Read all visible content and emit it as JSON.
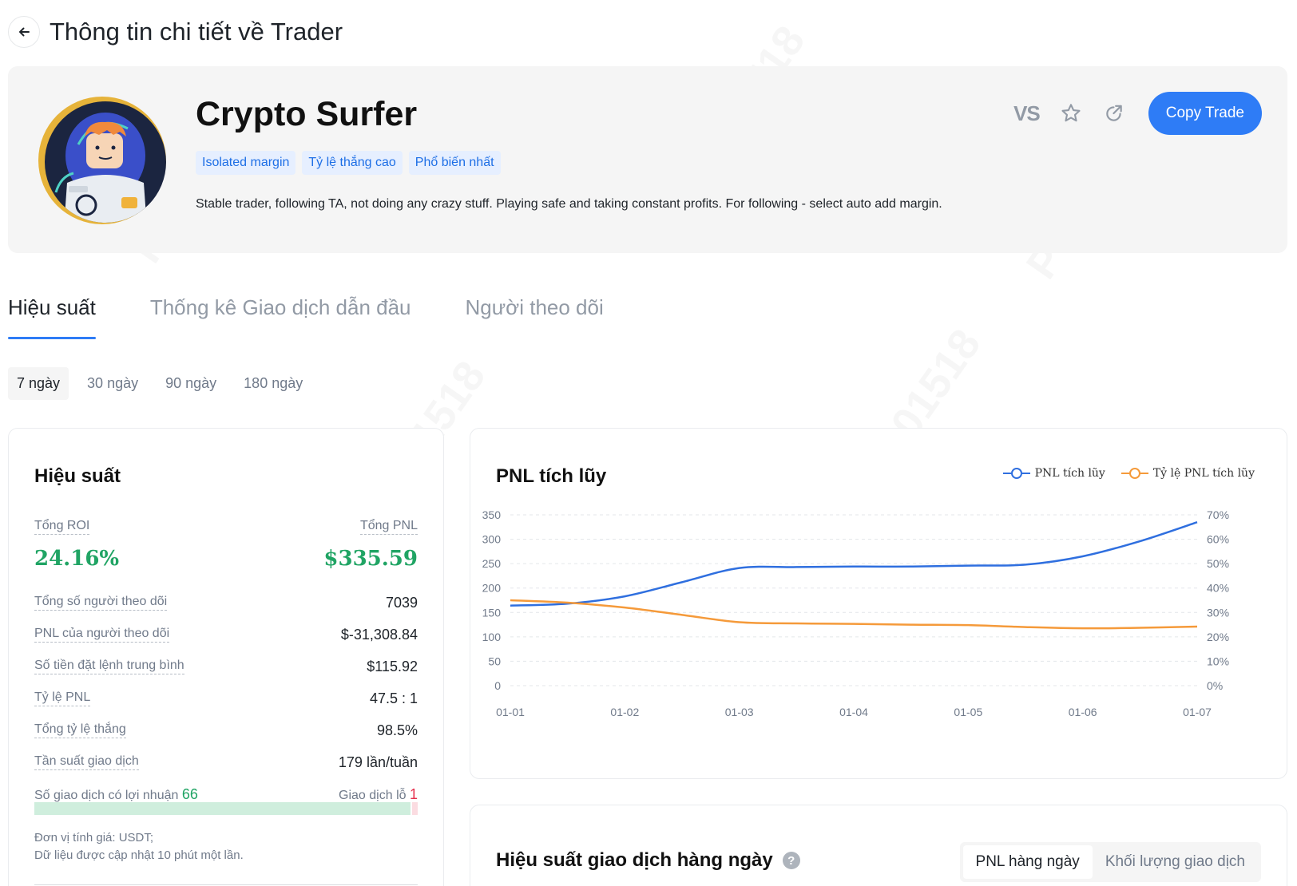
{
  "header": {
    "title": "Thông tin chi tiết về Trader",
    "back_icon": "arrow-left-icon"
  },
  "profile": {
    "name": "Crypto Surfer",
    "tags": [
      "Isolated margin",
      "Tỷ lệ thắng cao",
      "Phổ biến nhất"
    ],
    "description": "Stable trader, following TA, not doing any crazy stuff. Playing safe and taking constant profits. For following - select auto add margin.",
    "vs_label": "VS",
    "copy_label": "Copy Trade",
    "accent": "#2e7cf6"
  },
  "tabs": [
    "Hiệu suất",
    "Thống kê Giao dịch dẫn đầu",
    "Người theo dõi"
  ],
  "active_tab": 0,
  "periods": [
    "7 ngày",
    "30 ngày",
    "90 ngày",
    "180 ngày"
  ],
  "active_period": 0,
  "stats": {
    "title": "Hiệu suất",
    "roi_label": "Tổng ROI",
    "roi_value": "24.16%",
    "pnl_label": "Tổng PNL",
    "pnl_value": "$335.59",
    "rows": [
      {
        "label": "Tổng số người theo dõi",
        "value": "7039"
      },
      {
        "label": "PNL của người theo dõi",
        "value": "$-31,308.84"
      },
      {
        "label": "Số tiền đặt lệnh trung bình",
        "value": "$115.92"
      },
      {
        "label": "Tỷ lệ PNL",
        "value": "47.5 : 1"
      },
      {
        "label": "Tổng tỷ lệ thắng",
        "value": "98.5%"
      },
      {
        "label": "Tần suất giao dịch",
        "value": "179 lần/tuần"
      }
    ],
    "win_label": "Số giao dịch có lợi nhuận",
    "win_count": "66",
    "loss_label": "Giao dịch lỗ",
    "loss_count": "1",
    "footnote_1": "Đơn vị tính giá: USDT;",
    "footnote_2": "Dữ liệu được cập nhật 10 phút một lần.",
    "positive_color": "#20a464",
    "negative_color": "#e5304d"
  },
  "chart_data": {
    "type": "line",
    "title": "PNL tích lũy",
    "x": [
      "01-01",
      "01-02",
      "01-03",
      "01-04",
      "01-05",
      "01-06",
      "01-07"
    ],
    "y_left_ticks": [
      "350",
      "300",
      "250",
      "200",
      "150",
      "100",
      "50",
      "0"
    ],
    "y_right_ticks": [
      "70%",
      "60%",
      "50%",
      "40%",
      "30%",
      "20%",
      "10%",
      "0%"
    ],
    "ylim": [
      0,
      350
    ],
    "ylim_right": [
      0,
      70
    ],
    "grid": true,
    "legend_position": "top-right",
    "series": [
      {
        "name": "PNL tích lũy",
        "axis": "left",
        "color": "#2f6fdf",
        "x": [
          0,
          0.5,
          1,
          1.5,
          2,
          2.5,
          3,
          3.5,
          4,
          4.5,
          5,
          5.5,
          6
        ],
        "values": [
          164,
          168,
          183,
          212,
          241,
          243,
          244,
          244,
          246,
          248,
          265,
          296,
          335
        ]
      },
      {
        "name": "Tỷ lệ PNL tích lũy",
        "axis": "right",
        "color": "#f59a3a",
        "x": [
          0,
          0.5,
          1,
          1.5,
          2,
          2.5,
          3,
          3.5,
          4,
          4.5,
          5,
          5.5,
          6
        ],
        "values": [
          35,
          34,
          32,
          29,
          26,
          25.5,
          25.3,
          25,
          24.8,
          24,
          23.5,
          23.7,
          24.2
        ]
      }
    ]
  },
  "daily": {
    "title": "Hiệu suất giao dịch hàng ngày",
    "help_icon": "question-icon",
    "toggle": [
      "PNL hàng ngày",
      "Khối lượng giao dịch"
    ],
    "active_toggle": 0
  },
  "watermark": "PC-001518"
}
